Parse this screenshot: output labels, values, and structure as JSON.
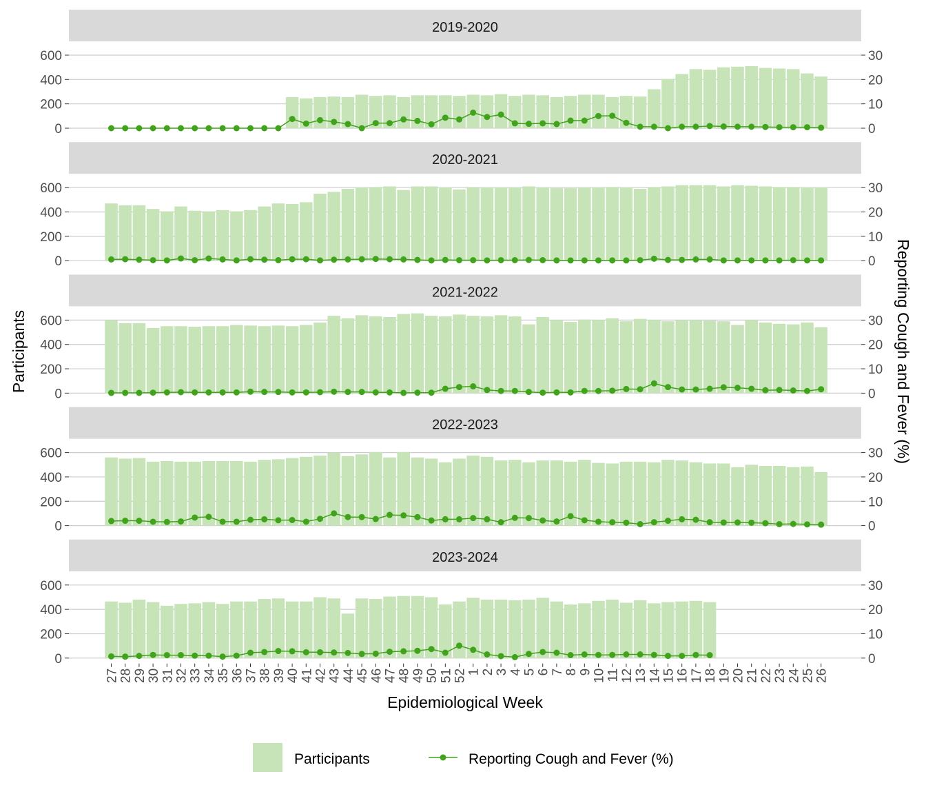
{
  "chart_data": {
    "type": "bar+line",
    "xlabel": "Epidemiological Week",
    "ylabel_left": "Participants",
    "ylabel_right": "Reporting Cough and Fever (%)",
    "y_left_lim": [
      0,
      600
    ],
    "y_left_ticks": [
      "0",
      "200",
      "400",
      "600"
    ],
    "y_right_lim": [
      0,
      30
    ],
    "y_right_ticks": [
      "0",
      "10",
      "20",
      "30"
    ],
    "weeks": [
      "27",
      "28",
      "29",
      "30",
      "31",
      "32",
      "33",
      "34",
      "35",
      "36",
      "37",
      "38",
      "39",
      "40",
      "41",
      "42",
      "43",
      "44",
      "45",
      "46",
      "47",
      "48",
      "49",
      "50",
      "51",
      "52",
      "1",
      "2",
      "3",
      "4",
      "5",
      "6",
      "7",
      "8",
      "9",
      "10",
      "11",
      "12",
      "13",
      "14",
      "15",
      "16",
      "17",
      "18",
      "19",
      "20",
      "21",
      "22",
      "23",
      "24",
      "25",
      "26"
    ],
    "legend": {
      "bars": "Participants",
      "line": "Reporting Cough and Fever (%)",
      "position": "bottom"
    },
    "colors": {
      "bar": "#c7e4b8",
      "line": "#41a21c",
      "strip": "#d9d9d9",
      "grid": "#cccccc"
    },
    "panels": [
      {
        "season": "2019-2020",
        "participants": [
          0,
          0,
          0,
          0,
          0,
          0,
          0,
          0,
          0,
          0,
          0,
          0,
          0,
          255,
          245,
          255,
          260,
          255,
          275,
          265,
          270,
          255,
          270,
          270,
          270,
          265,
          275,
          270,
          280,
          265,
          275,
          270,
          255,
          265,
          275,
          275,
          255,
          265,
          260,
          320,
          405,
          445,
          485,
          480,
          500,
          505,
          510,
          495,
          490,
          485,
          450,
          425
        ],
        "percent": [
          0,
          0,
          0,
          0,
          0,
          0,
          0,
          0,
          0,
          0,
          0,
          0,
          0,
          3.8,
          1.9,
          3.3,
          2.6,
          1.7,
          0,
          2.1,
          2.1,
          3.6,
          3.0,
          1.6,
          4.3,
          3.6,
          6.4,
          4.6,
          5.6,
          2.0,
          1.8,
          2.0,
          1.7,
          3.1,
          3.1,
          5.0,
          5.1,
          2.2,
          0.6,
          0.6,
          0,
          0.6,
          0.6,
          0.9,
          0.7,
          0.6,
          0.6,
          0.5,
          0.4,
          0.4,
          0.4,
          0.2
        ]
      },
      {
        "season": "2020-2021",
        "participants": [
          470,
          455,
          455,
          425,
          405,
          445,
          410,
          405,
          415,
          405,
          415,
          445,
          470,
          465,
          480,
          550,
          565,
          590,
          600,
          605,
          610,
          580,
          610,
          610,
          600,
          585,
          605,
          600,
          600,
          600,
          610,
          600,
          595,
          595,
          600,
          600,
          605,
          600,
          590,
          605,
          610,
          620,
          620,
          620,
          610,
          620,
          615,
          610,
          605,
          605,
          600,
          600
        ],
        "percent": [
          0.5,
          0.6,
          0.4,
          0.2,
          0.1,
          0.9,
          0.2,
          0.9,
          0.5,
          0.1,
          0.6,
          0.4,
          0.2,
          0.6,
          0.6,
          0.1,
          0.4,
          0.5,
          0.6,
          0.7,
          0.6,
          0.5,
          0.3,
          0.1,
          0.3,
          0.2,
          0.2,
          0.1,
          0.2,
          0.2,
          0.3,
          0.2,
          0.1,
          0.1,
          0.1,
          0.1,
          0.1,
          0.1,
          0.2,
          0.8,
          0.3,
          0.3,
          0.5,
          0.5,
          0.1,
          0.1,
          0.1,
          0.1,
          0.1,
          0.2,
          0.1,
          0.1
        ]
      },
      {
        "season": "2021-2022",
        "participants": [
          600,
          575,
          575,
          535,
          550,
          550,
          545,
          550,
          550,
          560,
          555,
          550,
          555,
          550,
          560,
          580,
          635,
          615,
          640,
          630,
          625,
          650,
          655,
          635,
          630,
          645,
          635,
          630,
          640,
          630,
          565,
          625,
          600,
          585,
          605,
          600,
          615,
          590,
          610,
          600,
          590,
          600,
          600,
          595,
          590,
          560,
          600,
          580,
          570,
          565,
          580,
          540
        ],
        "percent": [
          0.1,
          0.1,
          0.1,
          0.2,
          0.3,
          0.4,
          0.3,
          0.3,
          0.3,
          0.3,
          0.6,
          0.5,
          0.5,
          0.3,
          0.3,
          0.4,
          0.6,
          0.5,
          0.5,
          0.3,
          0.3,
          0.1,
          0.2,
          0.2,
          1.8,
          2.5,
          2.8,
          1.3,
          0.9,
          0.9,
          0.5,
          0.2,
          0.3,
          0.3,
          0.9,
          0.9,
          1.0,
          1.7,
          1.6,
          4.0,
          2.5,
          1.5,
          1.5,
          1.8,
          2.4,
          2.2,
          1.8,
          1.2,
          1.3,
          1.1,
          0.9,
          1.6
        ]
      },
      {
        "season": "2022-2023",
        "participants": [
          560,
          550,
          555,
          525,
          530,
          525,
          525,
          530,
          530,
          530,
          525,
          540,
          545,
          555,
          565,
          575,
          600,
          570,
          585,
          605,
          560,
          605,
          560,
          550,
          520,
          550,
          575,
          565,
          535,
          540,
          520,
          535,
          535,
          525,
          540,
          515,
          510,
          525,
          525,
          520,
          540,
          535,
          520,
          510,
          510,
          480,
          500,
          490,
          490,
          480,
          485,
          440
        ],
        "percent": [
          1.9,
          2.0,
          2.0,
          1.6,
          1.5,
          1.7,
          3.3,
          3.6,
          1.6,
          1.6,
          2.4,
          2.6,
          2.2,
          2.3,
          1.6,
          2.8,
          5.0,
          3.5,
          3.5,
          2.7,
          4.4,
          4.2,
          3.5,
          2.1,
          2.6,
          2.6,
          3.1,
          2.6,
          1.4,
          3.2,
          3.1,
          2.1,
          1.7,
          3.9,
          2.2,
          1.6,
          1.4,
          1.2,
          0.6,
          1.4,
          2.0,
          2.6,
          2.4,
          1.4,
          1.3,
          1.3,
          1.2,
          1.0,
          0.6,
          0.7,
          0.5,
          0.4
        ]
      },
      {
        "season": "2023-2024",
        "participants": [
          465,
          455,
          480,
          460,
          430,
          445,
          450,
          460,
          445,
          465,
          465,
          485,
          490,
          465,
          465,
          500,
          490,
          365,
          490,
          485,
          505,
          510,
          510,
          500,
          440,
          465,
          495,
          480,
          480,
          475,
          480,
          495,
          465,
          440,
          450,
          470,
          480,
          455,
          475,
          450,
          460,
          465,
          470,
          460,
          null,
          null,
          null,
          null,
          null,
          null,
          null,
          null
        ],
        "percent": [
          0.7,
          0.6,
          0.9,
          1.3,
          1.2,
          1.2,
          1.0,
          1.0,
          0.6,
          1.0,
          2.2,
          2.5,
          2.9,
          2.8,
          2.4,
          2.4,
          2.3,
          2.1,
          1.7,
          1.8,
          2.6,
          2.8,
          3.0,
          3.7,
          2.2,
          5.1,
          3.4,
          1.5,
          0.8,
          0.4,
          1.7,
          2.5,
          2.2,
          1.2,
          1.5,
          1.3,
          1.3,
          1.5,
          1.5,
          1.3,
          0.9,
          0.9,
          1.3,
          1.2,
          null,
          null,
          null,
          null,
          null,
          null,
          null,
          null
        ]
      }
    ]
  }
}
